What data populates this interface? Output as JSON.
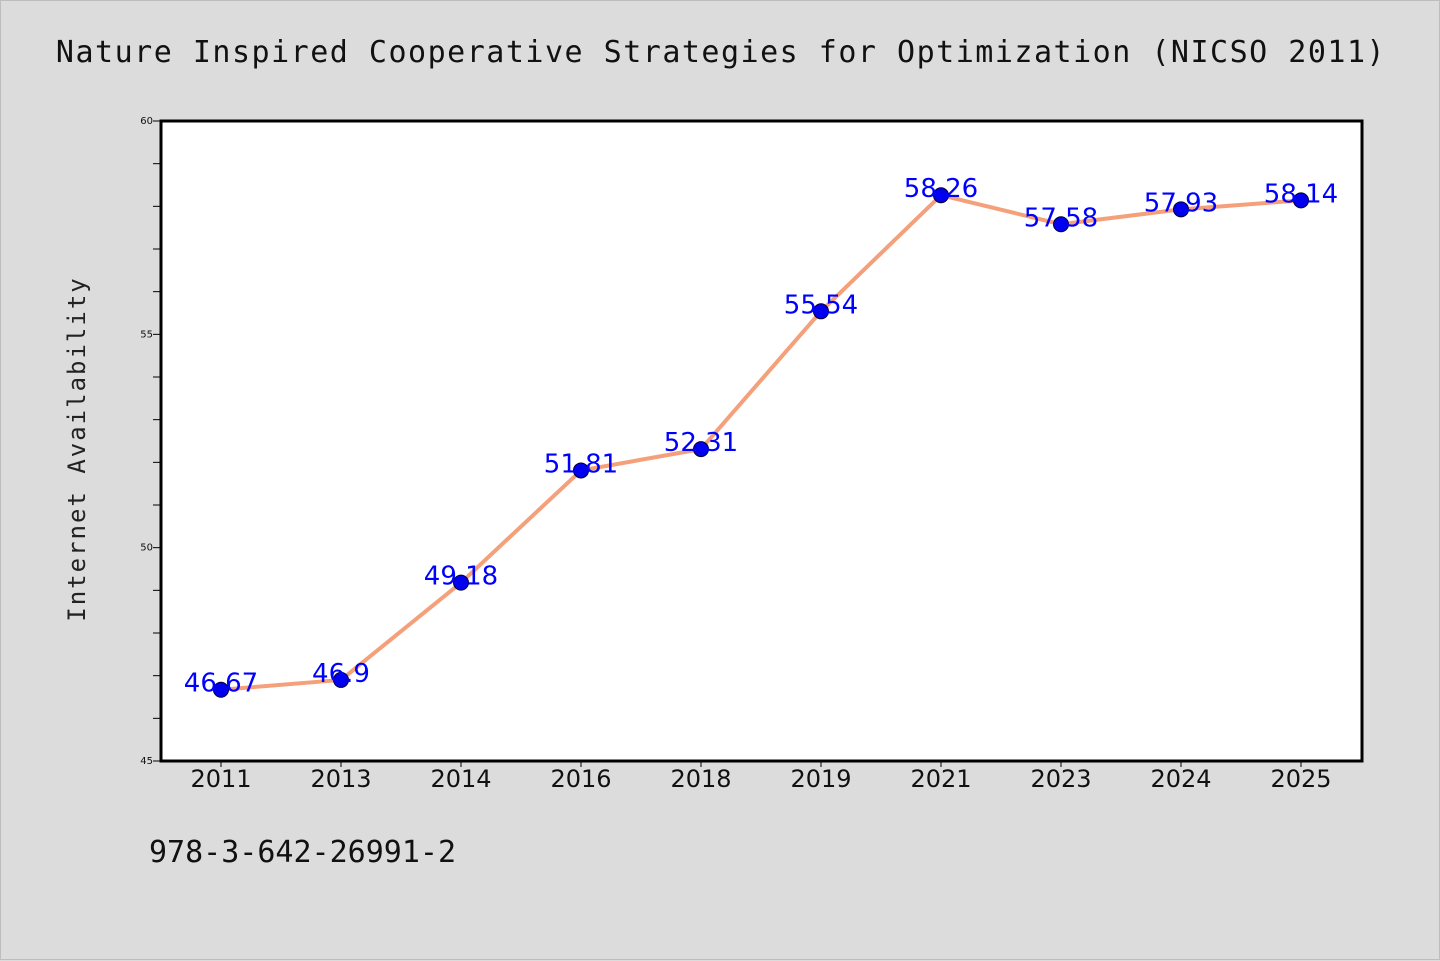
{
  "figure": {
    "title": "Nature Inspired Cooperative Strategies for Optimization (NICSO 2011)",
    "footer_text": "978-3-642-26991-2"
  },
  "chart_data": {
    "type": "line",
    "title": "Nature Inspired Cooperative Strategies for Optimization (NICSO 2011)",
    "xlabel": "",
    "ylabel": "Internet Availability",
    "categories": [
      "2011",
      "2013",
      "2014",
      "2016",
      "2018",
      "2019",
      "2021",
      "2023",
      "2024",
      "2025"
    ],
    "values": [
      46.67,
      46.9,
      49.18,
      51.81,
      52.31,
      55.54,
      58.26,
      57.58,
      57.93,
      58.14
    ],
    "data_labels": [
      "46.67",
      "46.9",
      "49.18",
      "51.81",
      "52.31",
      "55.54",
      "58.26",
      "57.58",
      "57.93",
      "58.14"
    ],
    "ylim": [
      45,
      60
    ],
    "yticks": [
      45,
      50,
      55,
      60
    ],
    "grid": false,
    "legend": "none",
    "colors": {
      "line": "#f4a07a",
      "marker": "#0000ee",
      "data_label": "#0000ff",
      "plot_background": "#ffffff",
      "figure_background": "#dcdcdc",
      "frame": "#000000"
    }
  }
}
